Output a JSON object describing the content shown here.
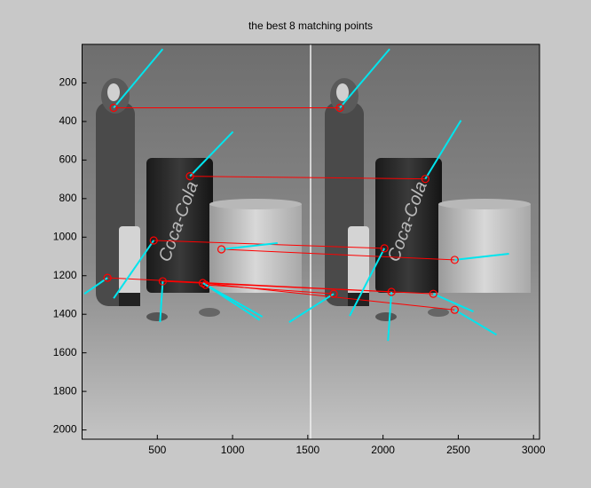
{
  "chart_data": {
    "type": "matches",
    "title": "the best 8 matching points",
    "xlim": [
      0,
      3040
    ],
    "ylim": [
      0,
      2048
    ],
    "y_direction": "reverse",
    "xticks": [
      500,
      1000,
      1500,
      2000,
      2500,
      3000
    ],
    "yticks": [
      200,
      400,
      600,
      800,
      1000,
      1200,
      1400,
      1600,
      1800,
      2000
    ],
    "match_color": "#ff0000",
    "orientation_color": "#00e5ee",
    "left": {
      "x": [
        210,
        717,
        476,
        926,
        169,
        536,
        802,
        820
      ],
      "y": [
        329,
        684,
        1017,
        1063,
        1211,
        1229,
        1238,
        1247
      ],
      "dir_x": [
        536,
        1003,
        210,
        1299,
        15,
        518,
        1198,
        1180
      ],
      "dir_y": [
        24,
        453,
        1317,
        1031,
        1294,
        1441,
        1413,
        1430
      ]
    },
    "right": {
      "x": [
        1713,
        2281,
        2009,
        2476,
        2334,
        2056,
        2476,
        1672
      ],
      "y": [
        329,
        698,
        1058,
        1118,
        1294,
        1284,
        1377,
        1294
      ],
      "dir_x": [
        2044,
        2518,
        1778,
        2837,
        2601,
        2033,
        2754,
        1376
      ],
      "dir_y": [
        24,
        394,
        1409,
        1086,
        1386,
        1538,
        1506,
        1441
      ]
    }
  }
}
